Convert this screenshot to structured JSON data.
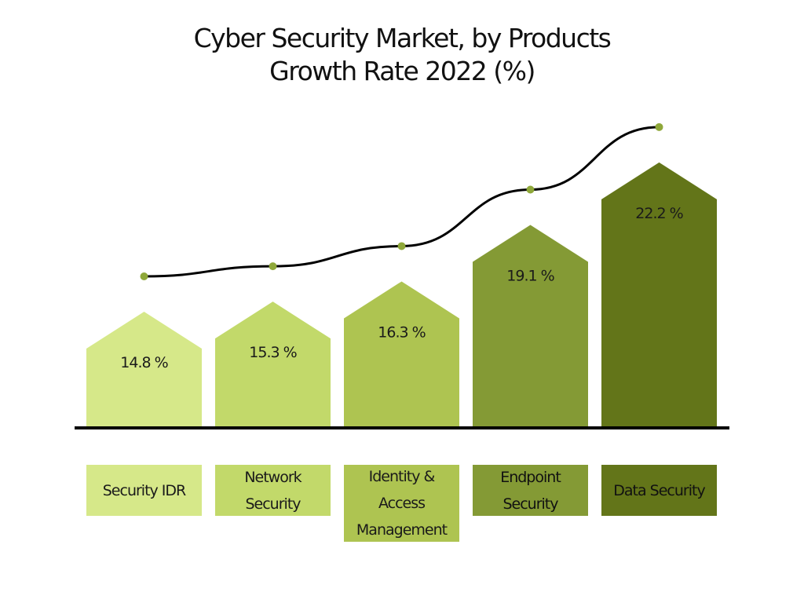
{
  "chart_data": {
    "type": "bar",
    "title_line1": "Cyber Security Market, by Products",
    "title_line2": "Growth Rate 2022 (%)",
    "categories": [
      "Security IDR",
      "Network Security",
      "Identity & Access Management",
      "Endpoint Security",
      "Data Security"
    ],
    "category_lines": [
      [
        "Security IDR"
      ],
      [
        "Network",
        "Security"
      ],
      [
        "Identity &",
        "Access",
        "Management"
      ],
      [
        "Endpoint",
        "Security"
      ],
      [
        "Data Security"
      ]
    ],
    "values": [
      14.8,
      15.3,
      16.3,
      19.1,
      22.2
    ],
    "value_labels": [
      "14.8 %",
      "15.3 %",
      "16.3 %",
      "19.1 %",
      "22.2 %"
    ],
    "colors": [
      "#d6e889",
      "#c2d96a",
      "#aec451",
      "#849a35",
      "#637519"
    ],
    "line_color": "#000000",
    "marker_color": "#8fa83a",
    "overlay": "line connecting points above each bar",
    "xlabel": "",
    "ylabel": "",
    "grid": false
  }
}
